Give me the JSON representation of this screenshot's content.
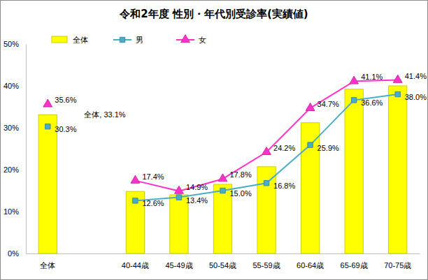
{
  "chart_data": {
    "type": "bar",
    "title": "令和2年度 性別・年代別受診率(実績値)",
    "categories": [
      "全体",
      null,
      "40-44歳",
      "45-49歳",
      "50-54歳",
      "55-59歳",
      "60-64歳",
      "65-69歳",
      "70-75歳"
    ],
    "series": [
      {
        "name": "全体",
        "type": "bar",
        "color": "#ffff00",
        "values": [
          33.1,
          null,
          14.8,
          14.0,
          16.5,
          20.7,
          31.2,
          39.2,
          40.0
        ],
        "value_labels": [
          "全体, 33.1%",
          null,
          null,
          null,
          null,
          null,
          null,
          null,
          null
        ]
      },
      {
        "name": "男",
        "type": "line",
        "color": "#4bacc6",
        "marker": "square",
        "values": [
          30.3,
          null,
          12.6,
          13.4,
          15.0,
          16.8,
          25.9,
          36.6,
          38.0
        ],
        "value_labels": [
          "30.3%",
          null,
          "12.6%",
          "13.4%",
          "15.0%",
          "16.8%",
          "25.9%",
          "36.6%",
          "38.0%"
        ]
      },
      {
        "name": "女",
        "type": "line",
        "color": "#ff33cc",
        "marker": "triangle",
        "values": [
          35.6,
          null,
          17.4,
          14.9,
          17.8,
          24.2,
          34.7,
          41.1,
          41.4
        ],
        "value_labels": [
          "35.6%",
          null,
          "17.4%",
          "14.9%",
          "17.8%",
          "24.2%",
          "34.7%",
          "41.1%",
          "41.4%"
        ]
      }
    ],
    "ylim": [
      0,
      50
    ],
    "yticks": [
      {
        "value": 0,
        "label": "0%"
      },
      {
        "value": 10,
        "label": "10%"
      },
      {
        "value": 20,
        "label": "20%"
      },
      {
        "value": 30,
        "label": "30%"
      },
      {
        "value": 40,
        "label": "40%"
      },
      {
        "value": 50,
        "label": "50%"
      }
    ],
    "grid": false,
    "legend": "top",
    "data_labels": true
  }
}
